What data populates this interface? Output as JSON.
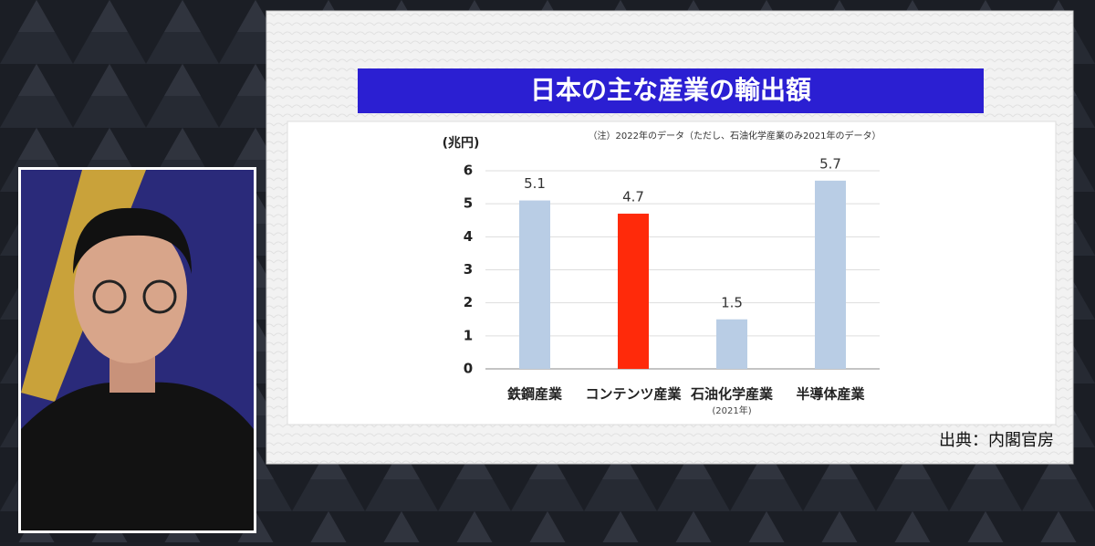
{
  "chart_data": {
    "type": "bar",
    "title": "日本の主な産業の輸出額",
    "note": "（注）2022年のデータ（ただし、石油化学産業のみ2021年のデータ）",
    "y_unit": "(兆円)",
    "categories": [
      "鉄鋼産業",
      "コンテンツ産業",
      "石油化学産業",
      "半導体産業"
    ],
    "category_annotation": "(2021年)",
    "values": [
      5.1,
      4.7,
      1.5,
      5.7
    ],
    "colors": [
      "#b9cde5",
      "#ff2a0a",
      "#b9cde5",
      "#b9cde5"
    ],
    "ylim": [
      0,
      6
    ],
    "yticks": [
      0,
      1,
      2,
      3,
      4,
      5,
      6
    ],
    "grid": true,
    "source": "出典：内閣官房"
  }
}
